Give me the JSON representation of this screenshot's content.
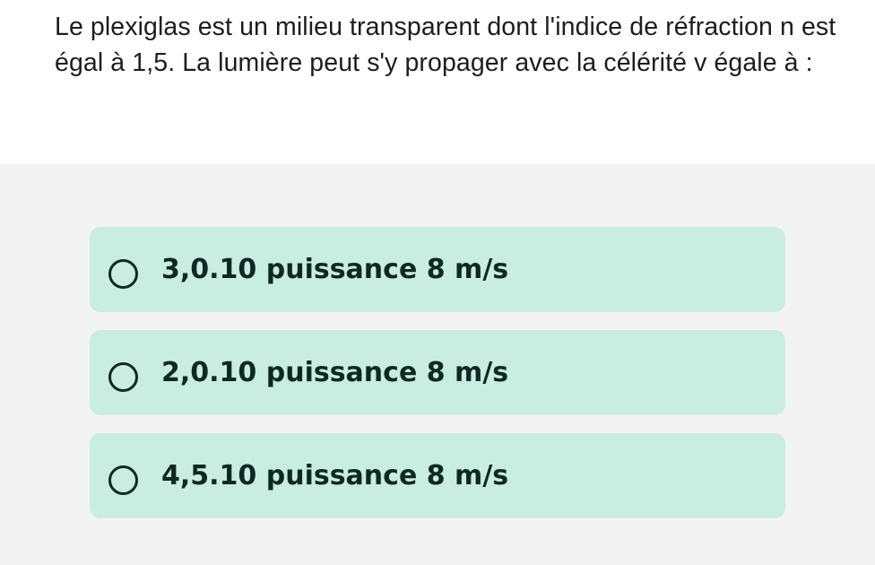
{
  "question": {
    "text": "Le plexiglas est un milieu transparent dont l'indice de réfraction n est égal à 1,5. La lumière peut s'y propager avec la célérité v égale à :"
  },
  "answers": [
    {
      "label": "3,0.10 puissance 8 m/s",
      "selected": false
    },
    {
      "label": "2,0.10 puissance 8 m/s",
      "selected": false
    },
    {
      "label": "4,5.10 puissance 8 m/s",
      "selected": false
    }
  ],
  "colors": {
    "answer_background": "#c9ede0",
    "answer_text": "#0d2a22",
    "page_background": "#f3f3f3",
    "question_background": "#ffffff"
  }
}
